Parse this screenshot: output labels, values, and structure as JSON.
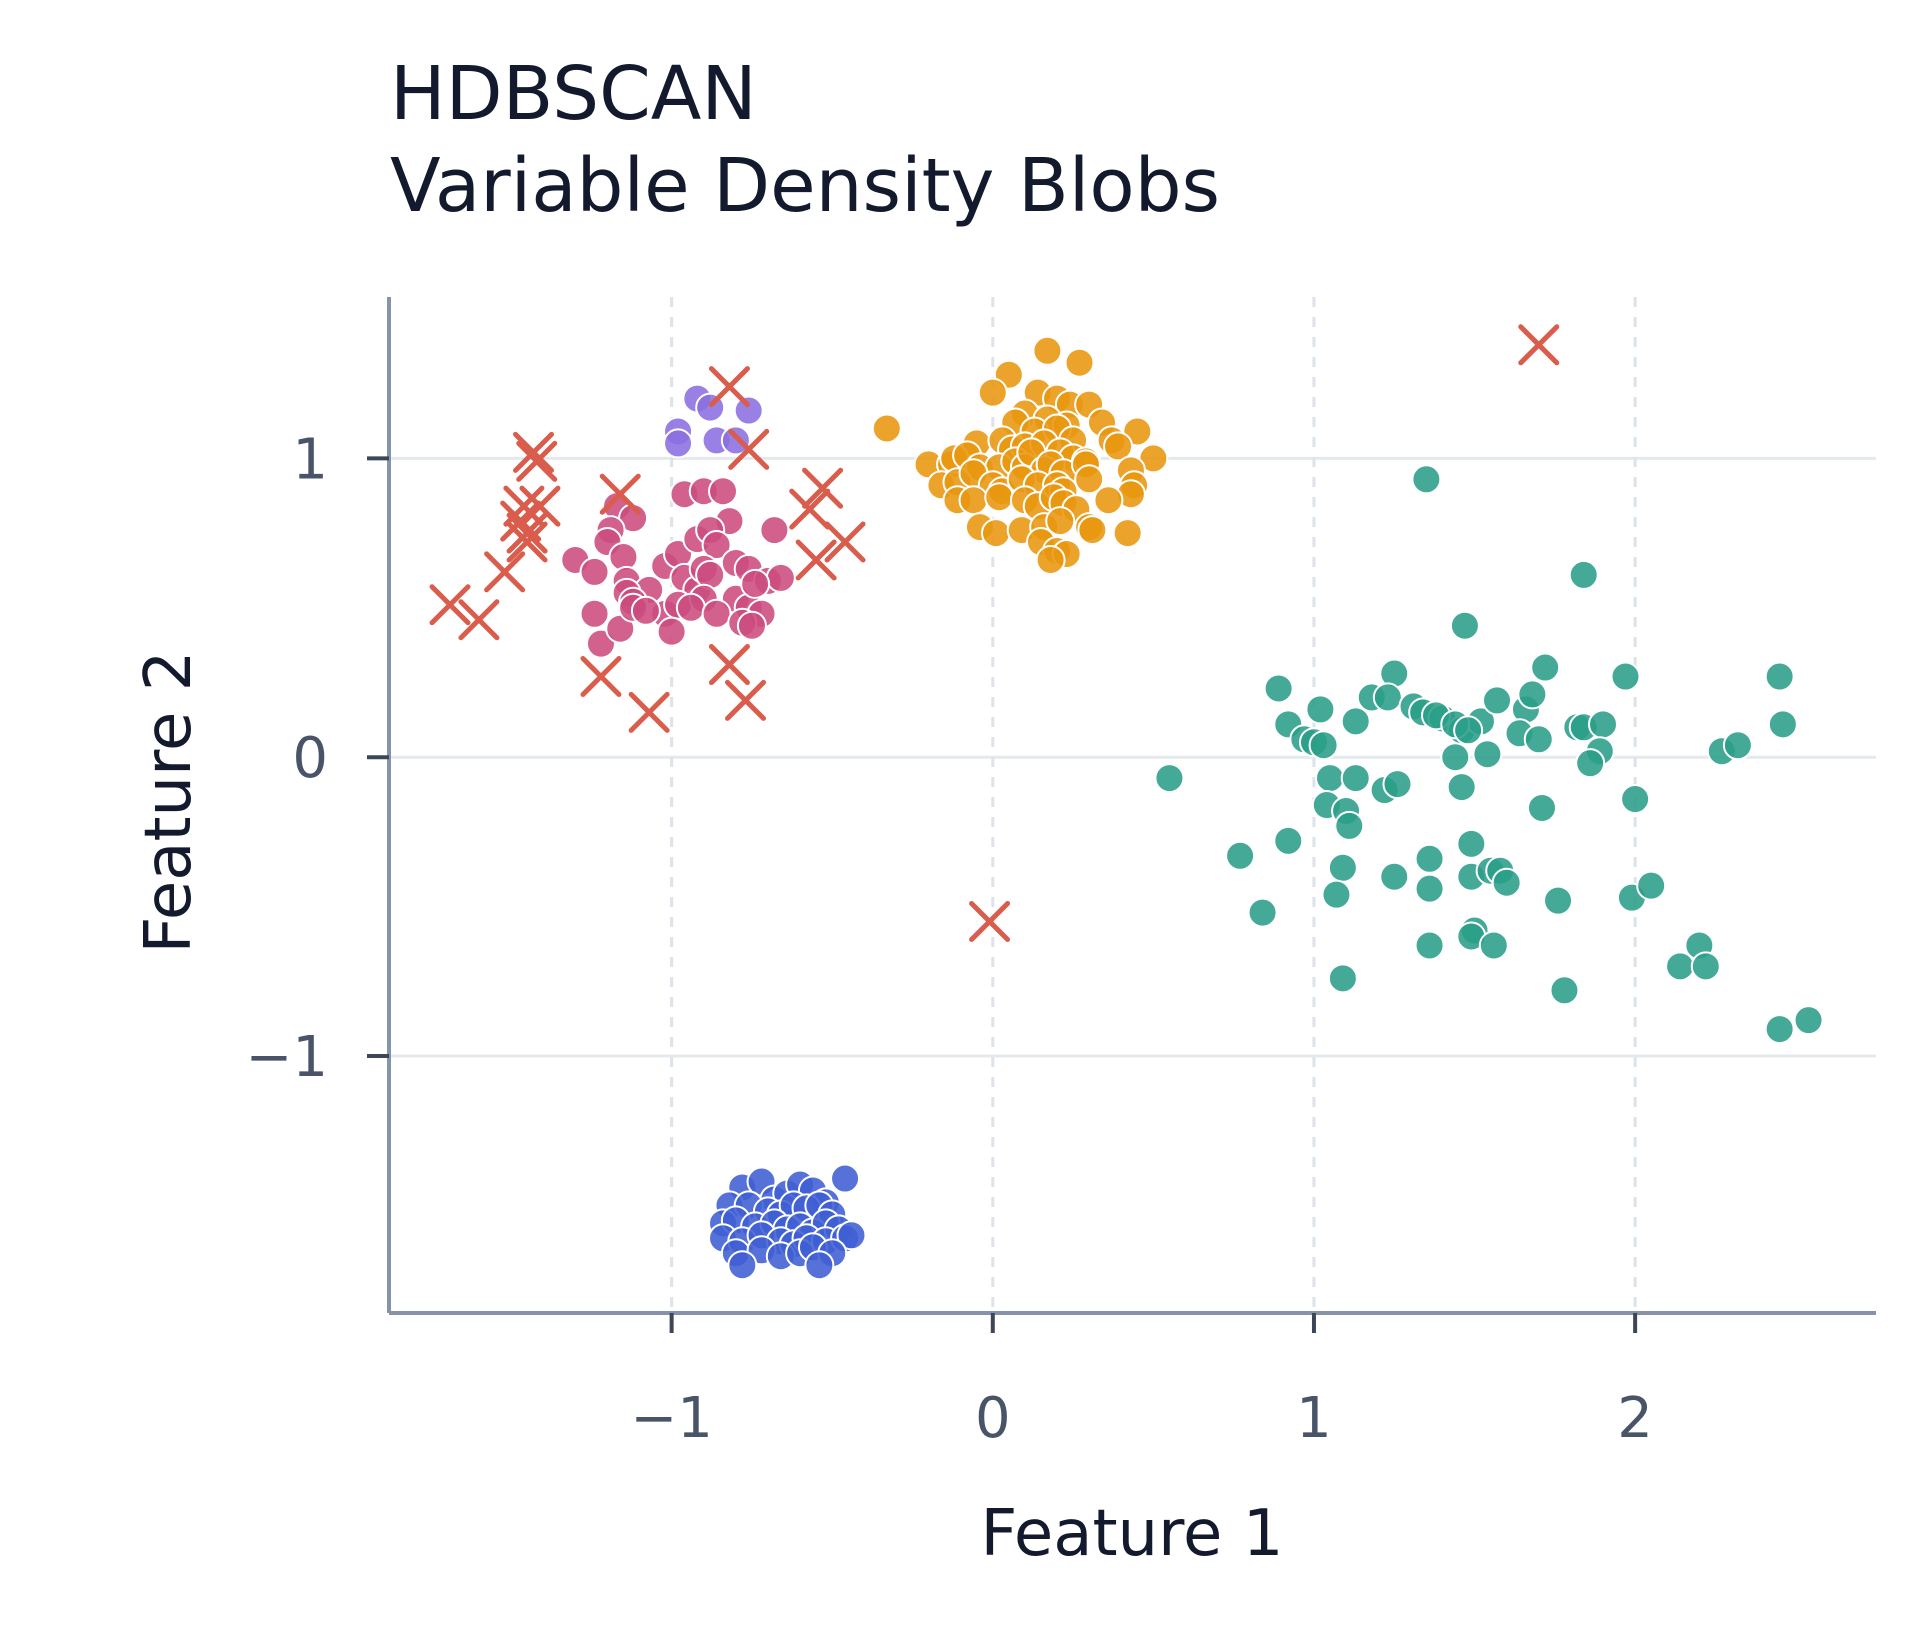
{
  "chart_data": {
    "type": "scatter",
    "title": "HDBSCAN",
    "subtitle": "Variable Density Blobs",
    "xlabel": "Feature 1",
    "ylabel": "Feature 2",
    "xlim": [
      -1.88,
      2.75
    ],
    "ylim": [
      -1.86,
      1.54
    ],
    "xticks": [
      -1,
      0,
      1,
      2
    ],
    "yticks": [
      -1,
      0,
      1
    ],
    "xtick_labels": [
      "−1",
      "0",
      "1",
      "2"
    ],
    "ytick_labels": [
      "−1",
      "0",
      "1"
    ],
    "grid": "on",
    "legend": "none",
    "colors": {
      "blue": "#3f5fd4",
      "purple": "#8b6ee0",
      "magenta": "#cc4b7e",
      "orange": "#e8960f",
      "green": "#2a9e89",
      "noise": "#d95c4c",
      "axis": "#8793a8",
      "grid": "#e4e9ee",
      "tick_text": "#4a5468",
      "label_text": "#141a2e"
    },
    "series": [
      {
        "color": "blue",
        "marker": "circle",
        "points": [
          [
            -0.78,
            -1.44
          ],
          [
            -0.72,
            -1.42
          ],
          [
            -0.68,
            -1.48
          ],
          [
            -0.64,
            -1.46
          ],
          [
            -0.6,
            -1.43
          ],
          [
            -0.56,
            -1.45
          ],
          [
            -0.52,
            -1.49
          ],
          [
            -0.46,
            -1.41
          ],
          [
            -0.82,
            -1.5
          ],
          [
            -0.76,
            -1.5
          ],
          [
            -0.7,
            -1.52
          ],
          [
            -0.66,
            -1.53
          ],
          [
            -0.62,
            -1.5
          ],
          [
            -0.58,
            -1.51
          ],
          [
            -0.54,
            -1.5
          ],
          [
            -0.5,
            -1.53
          ],
          [
            -0.84,
            -1.56
          ],
          [
            -0.8,
            -1.55
          ],
          [
            -0.74,
            -1.57
          ],
          [
            -0.68,
            -1.56
          ],
          [
            -0.64,
            -1.58
          ],
          [
            -0.6,
            -1.57
          ],
          [
            -0.56,
            -1.59
          ],
          [
            -0.52,
            -1.56
          ],
          [
            -0.48,
            -1.58
          ],
          [
            -0.84,
            -1.61
          ],
          [
            -0.78,
            -1.62
          ],
          [
            -0.72,
            -1.6
          ],
          [
            -0.66,
            -1.62
          ],
          [
            -0.62,
            -1.63
          ],
          [
            -0.58,
            -1.61
          ],
          [
            -0.52,
            -1.62
          ],
          [
            -0.46,
            -1.61
          ],
          [
            -0.44,
            -1.6
          ],
          [
            -0.8,
            -1.66
          ],
          [
            -0.72,
            -1.65
          ],
          [
            -0.66,
            -1.67
          ],
          [
            -0.6,
            -1.66
          ],
          [
            -0.56,
            -1.64
          ],
          [
            -0.5,
            -1.66
          ],
          [
            -0.78,
            -1.7
          ],
          [
            -0.54,
            -1.7
          ]
        ]
      },
      {
        "color": "purple",
        "marker": "circle",
        "points": [
          [
            -0.92,
            1.2
          ],
          [
            -0.88,
            1.17
          ],
          [
            -0.76,
            1.16
          ],
          [
            -0.98,
            1.09
          ],
          [
            -0.98,
            1.05
          ],
          [
            -0.86,
            1.06
          ],
          [
            -0.8,
            1.06
          ]
        ]
      },
      {
        "color": "magenta",
        "marker": "circle",
        "points": [
          [
            -1.17,
            0.84
          ],
          [
            -1.12,
            0.8
          ],
          [
            -0.96,
            0.88
          ],
          [
            -0.9,
            0.89
          ],
          [
            -0.84,
            0.89
          ],
          [
            -0.82,
            0.79
          ],
          [
            -0.68,
            0.76
          ],
          [
            -1.19,
            0.76
          ],
          [
            -1.2,
            0.72
          ],
          [
            -1.15,
            0.67
          ],
          [
            -1.02,
            0.64
          ],
          [
            -0.98,
            0.68
          ],
          [
            -0.92,
            0.73
          ],
          [
            -0.88,
            0.76
          ],
          [
            -0.86,
            0.71
          ],
          [
            -0.8,
            0.65
          ],
          [
            -1.3,
            0.66
          ],
          [
            -1.24,
            0.62
          ],
          [
            -1.14,
            0.59
          ],
          [
            -1.07,
            0.56
          ],
          [
            -0.96,
            0.6
          ],
          [
            -0.92,
            0.56
          ],
          [
            -0.9,
            0.63
          ],
          [
            -0.88,
            0.61
          ],
          [
            -0.76,
            0.63
          ],
          [
            -0.7,
            0.59
          ],
          [
            -0.66,
            0.6
          ],
          [
            -1.14,
            0.55
          ],
          [
            -1.12,
            0.52
          ],
          [
            -1.02,
            0.48
          ],
          [
            -0.98,
            0.51
          ],
          [
            -0.9,
            0.53
          ],
          [
            -0.8,
            0.53
          ],
          [
            -0.76,
            0.5
          ],
          [
            -0.72,
            0.48
          ],
          [
            -0.74,
            0.58
          ],
          [
            -1.24,
            0.48
          ],
          [
            -1.22,
            0.38
          ],
          [
            -1.16,
            0.43
          ],
          [
            -1.12,
            0.5
          ],
          [
            -1.08,
            0.49
          ],
          [
            -1.0,
            0.42
          ],
          [
            -0.94,
            0.5
          ],
          [
            -0.86,
            0.48
          ],
          [
            -0.78,
            0.45
          ],
          [
            -0.75,
            0.44
          ]
        ]
      },
      {
        "color": "orange",
        "marker": "circle",
        "points": [
          [
            0.17,
            1.36
          ],
          [
            0.27,
            1.32
          ],
          [
            0.05,
            1.28
          ],
          [
            0.0,
            1.22
          ],
          [
            0.14,
            1.22
          ],
          [
            0.2,
            1.2
          ],
          [
            0.24,
            1.18
          ],
          [
            0.3,
            1.18
          ],
          [
            0.1,
            1.15
          ],
          [
            0.17,
            1.13
          ],
          [
            0.23,
            1.11
          ],
          [
            0.34,
            1.12
          ],
          [
            0.37,
            1.06
          ],
          [
            -0.33,
            1.1
          ],
          [
            0.07,
            1.12
          ],
          [
            0.13,
            1.09
          ],
          [
            0.2,
            1.1
          ],
          [
            0.25,
            1.06
          ],
          [
            0.45,
            1.09
          ],
          [
            0.39,
            1.04
          ],
          [
            -0.05,
            1.05
          ],
          [
            0.03,
            1.06
          ],
          [
            0.06,
            1.03
          ],
          [
            0.1,
            1.04
          ],
          [
            0.16,
            1.05
          ],
          [
            0.21,
            1.02
          ],
          [
            0.25,
            1.0
          ],
          [
            0.29,
            0.99
          ],
          [
            -0.2,
            0.98
          ],
          [
            -0.13,
            0.98
          ],
          [
            -0.12,
            1.0
          ],
          [
            -0.08,
            1.01
          ],
          [
            -0.04,
            0.97
          ],
          [
            0.02,
            0.97
          ],
          [
            0.07,
            0.99
          ],
          [
            0.1,
            0.97
          ],
          [
            0.12,
            1.02
          ],
          [
            0.16,
            0.96
          ],
          [
            0.18,
            0.98
          ],
          [
            0.22,
            0.95
          ],
          [
            0.29,
            0.98
          ],
          [
            0.5,
            1.0
          ],
          [
            0.43,
            0.96
          ],
          [
            0.44,
            0.91
          ],
          [
            -0.16,
            0.91
          ],
          [
            -0.11,
            0.92
          ],
          [
            -0.06,
            0.95
          ],
          [
            0.0,
            0.91
          ],
          [
            0.03,
            0.89
          ],
          [
            0.09,
            0.93
          ],
          [
            0.14,
            0.91
          ],
          [
            0.2,
            0.91
          ],
          [
            0.22,
            0.89
          ],
          [
            0.3,
            0.93
          ],
          [
            0.43,
            0.88
          ],
          [
            0.36,
            0.86
          ],
          [
            -0.11,
            0.86
          ],
          [
            -0.06,
            0.86
          ],
          [
            0.02,
            0.87
          ],
          [
            0.1,
            0.86
          ],
          [
            0.14,
            0.84
          ],
          [
            0.19,
            0.87
          ],
          [
            0.22,
            0.85
          ],
          [
            0.26,
            0.83
          ],
          [
            -0.04,
            0.77
          ],
          [
            0.01,
            0.75
          ],
          [
            0.09,
            0.76
          ],
          [
            0.16,
            0.77
          ],
          [
            0.21,
            0.79
          ],
          [
            0.3,
            0.77
          ],
          [
            0.31,
            0.76
          ],
          [
            0.42,
            0.75
          ],
          [
            0.15,
            0.72
          ],
          [
            0.2,
            0.69
          ],
          [
            0.23,
            0.68
          ],
          [
            0.18,
            0.66
          ]
        ]
      },
      {
        "color": "green",
        "marker": "circle",
        "points": [
          [
            1.35,
            0.93
          ],
          [
            1.84,
            0.61
          ],
          [
            1.47,
            0.44
          ],
          [
            0.55,
            -0.07
          ],
          [
            0.89,
            0.23
          ],
          [
            1.25,
            0.28
          ],
          [
            1.18,
            0.2
          ],
          [
            1.23,
            0.2
          ],
          [
            1.31,
            0.17
          ],
          [
            1.34,
            0.15
          ],
          [
            1.4,
            0.13
          ],
          [
            1.46,
            0.09
          ],
          [
            1.52,
            0.12
          ],
          [
            1.57,
            0.19
          ],
          [
            1.66,
            0.16
          ],
          [
            1.68,
            0.21
          ],
          [
            1.72,
            0.3
          ],
          [
            1.97,
            0.27
          ],
          [
            0.92,
            0.11
          ],
          [
            1.02,
            0.16
          ],
          [
            1.13,
            0.12
          ],
          [
            0.97,
            0.06
          ],
          [
            1.0,
            0.05
          ],
          [
            1.03,
            0.04
          ],
          [
            1.38,
            0.14
          ],
          [
            1.44,
            0.11
          ],
          [
            1.48,
            0.09
          ],
          [
            1.82,
            0.1
          ],
          [
            1.84,
            0.1
          ],
          [
            1.9,
            0.11
          ],
          [
            1.64,
            0.08
          ],
          [
            1.7,
            0.06
          ],
          [
            1.89,
            0.02
          ],
          [
            1.86,
            -0.02
          ],
          [
            1.44,
            0.0
          ],
          [
            1.54,
            0.01
          ],
          [
            1.46,
            -0.1
          ],
          [
            2.45,
            0.27
          ],
          [
            2.46,
            0.11
          ],
          [
            2.27,
            0.02
          ],
          [
            2.32,
            0.04
          ],
          [
            1.05,
            -0.07
          ],
          [
            1.13,
            -0.07
          ],
          [
            1.22,
            -0.11
          ],
          [
            1.26,
            -0.09
          ],
          [
            1.04,
            -0.16
          ],
          [
            1.1,
            -0.18
          ],
          [
            1.11,
            -0.23
          ],
          [
            1.71,
            -0.17
          ],
          [
            2.0,
            -0.14
          ],
          [
            0.77,
            -0.33
          ],
          [
            0.92,
            -0.28
          ],
          [
            1.09,
            -0.37
          ],
          [
            1.25,
            -0.4
          ],
          [
            1.36,
            -0.34
          ],
          [
            1.36,
            -0.44
          ],
          [
            1.49,
            -0.29
          ],
          [
            1.49,
            -0.4
          ],
          [
            1.55,
            -0.38
          ],
          [
            1.58,
            -0.38
          ],
          [
            1.6,
            -0.42
          ],
          [
            1.76,
            -0.48
          ],
          [
            1.07,
            -0.46
          ],
          [
            1.99,
            -0.47
          ],
          [
            2.05,
            -0.43
          ],
          [
            0.84,
            -0.52
          ],
          [
            1.5,
            -0.58
          ],
          [
            1.49,
            -0.6
          ],
          [
            1.36,
            -0.63
          ],
          [
            1.56,
            -0.63
          ],
          [
            1.09,
            -0.74
          ],
          [
            1.78,
            -0.78
          ],
          [
            2.14,
            -0.7
          ],
          [
            2.2,
            -0.63
          ],
          [
            2.22,
            -0.7
          ],
          [
            2.45,
            -0.91
          ],
          [
            2.54,
            -0.88
          ]
        ]
      },
      {
        "color": "noise",
        "marker": "x",
        "points": [
          [
            1.7,
            1.38
          ],
          [
            -0.82,
            1.24
          ],
          [
            -1.43,
            1.02
          ],
          [
            -1.42,
            0.99
          ],
          [
            -0.76,
            1.03
          ],
          [
            -1.46,
            0.84
          ],
          [
            -1.41,
            0.84
          ],
          [
            -1.47,
            0.79
          ],
          [
            -1.45,
            0.75
          ],
          [
            -1.45,
            0.72
          ],
          [
            -1.16,
            0.88
          ],
          [
            -0.53,
            0.9
          ],
          [
            -0.57,
            0.83
          ],
          [
            -0.46,
            0.72
          ],
          [
            -0.55,
            0.66
          ],
          [
            -1.52,
            0.62
          ],
          [
            -1.69,
            0.51
          ],
          [
            -1.6,
            0.46
          ],
          [
            -0.82,
            0.31
          ],
          [
            -1.22,
            0.27
          ],
          [
            -1.07,
            0.15
          ],
          [
            -0.77,
            0.19
          ],
          [
            -0.01,
            -0.55
          ]
        ]
      }
    ]
  }
}
